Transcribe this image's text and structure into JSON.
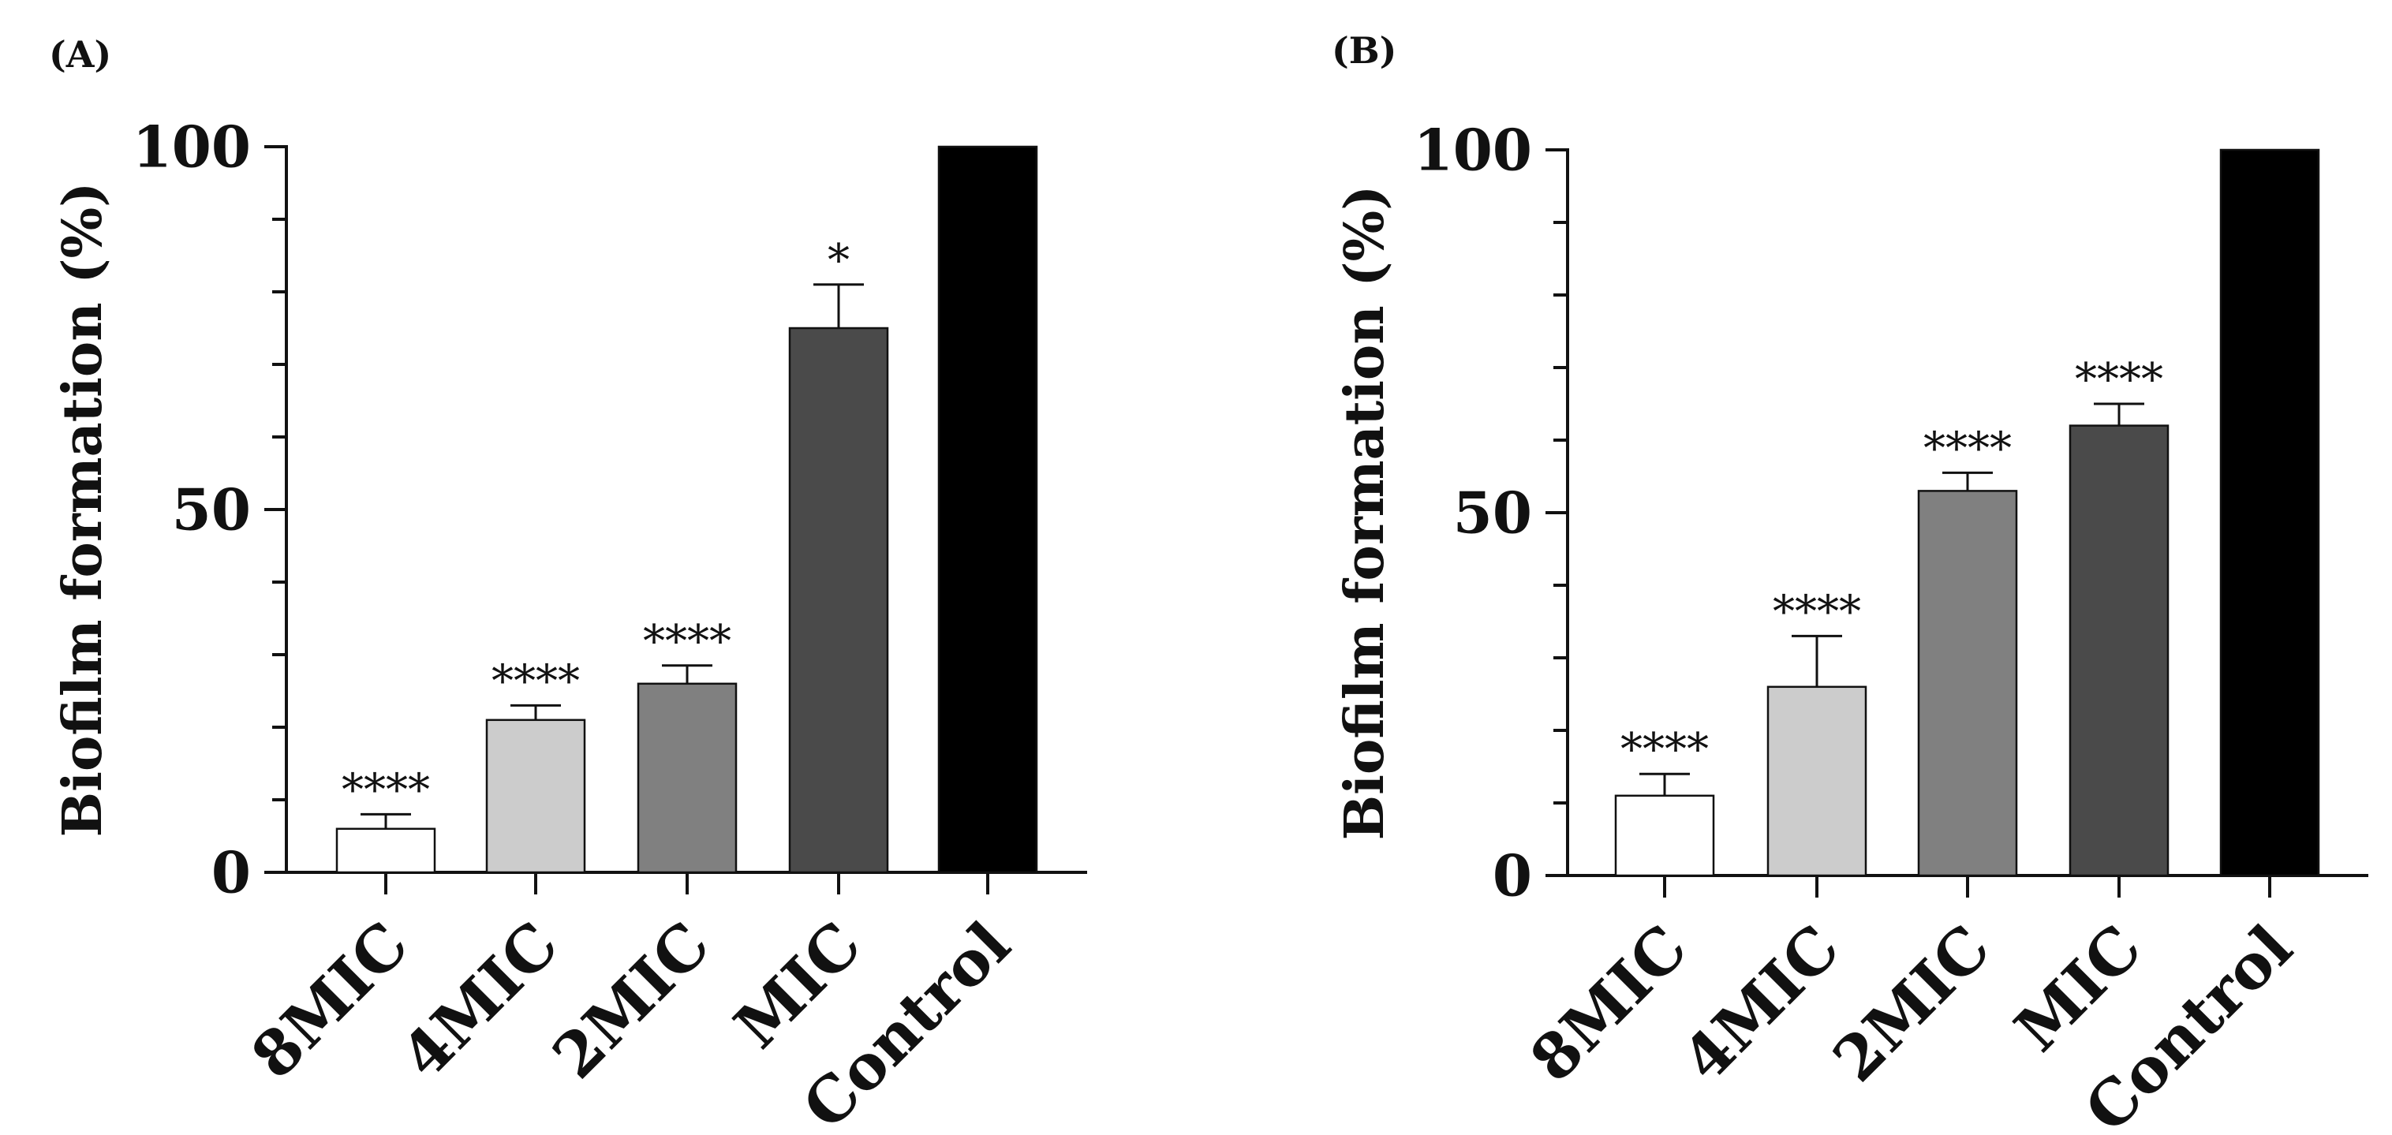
{
  "chart_data": [
    {
      "type": "bar",
      "panel_label": "(A)",
      "title": "",
      "xlabel": "",
      "ylabel": "Biofilm formation (%)",
      "ylim": [
        0,
        100
      ],
      "yticks": [
        0,
        50,
        100
      ],
      "ytick_labels": [
        "0",
        "50",
        "100"
      ],
      "grid": false,
      "categories": [
        "8MIC",
        "4MIC",
        "2MIC",
        "MIC",
        "Control"
      ],
      "values": [
        6,
        21,
        26,
        75,
        100
      ],
      "errors": [
        2,
        2,
        2.5,
        6,
        0
      ],
      "significance": [
        "****",
        "****",
        "****",
        "*",
        ""
      ],
      "bar_colors": [
        "#ffffff",
        "#cccccc",
        "#808080",
        "#4a4a4a",
        "#000000"
      ]
    },
    {
      "type": "bar",
      "panel_label": "(B)",
      "title": "",
      "xlabel": "",
      "ylabel": "Biofilm formation (%)",
      "ylim": [
        0,
        100
      ],
      "yticks": [
        0,
        50,
        100
      ],
      "ytick_labels": [
        "0",
        "50",
        "100"
      ],
      "grid": false,
      "categories": [
        "8MIC",
        "4MIC",
        "2MIC",
        "MIC",
        "Control"
      ],
      "values": [
        11,
        26,
        53,
        62,
        100
      ],
      "errors": [
        3,
        7,
        2.5,
        3,
        0
      ],
      "significance": [
        "****",
        "****",
        "****",
        "****",
        ""
      ],
      "bar_colors": [
        "#ffffff",
        "#cccccc",
        "#808080",
        "#4a4a4a",
        "#000000"
      ]
    }
  ]
}
